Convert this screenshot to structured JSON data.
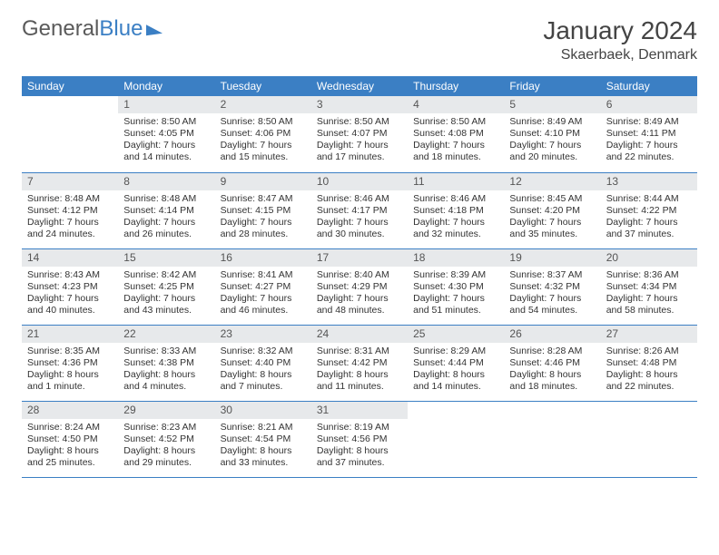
{
  "brand": {
    "part1": "General",
    "part2": "Blue"
  },
  "title": "January 2024",
  "location": "Skaerbaek, Denmark",
  "colors": {
    "accent": "#3b7fc4",
    "daynum_bg": "#e7e9eb",
    "text": "#333333",
    "background": "#ffffff"
  },
  "day_headers": [
    "Sunday",
    "Monday",
    "Tuesday",
    "Wednesday",
    "Thursday",
    "Friday",
    "Saturday"
  ],
  "weeks": [
    [
      {
        "n": "",
        "sr": "",
        "ss": "",
        "dl": ""
      },
      {
        "n": "1",
        "sr": "Sunrise: 8:50 AM",
        "ss": "Sunset: 4:05 PM",
        "dl": "Daylight: 7 hours and 14 minutes."
      },
      {
        "n": "2",
        "sr": "Sunrise: 8:50 AM",
        "ss": "Sunset: 4:06 PM",
        "dl": "Daylight: 7 hours and 15 minutes."
      },
      {
        "n": "3",
        "sr": "Sunrise: 8:50 AM",
        "ss": "Sunset: 4:07 PM",
        "dl": "Daylight: 7 hours and 17 minutes."
      },
      {
        "n": "4",
        "sr": "Sunrise: 8:50 AM",
        "ss": "Sunset: 4:08 PM",
        "dl": "Daylight: 7 hours and 18 minutes."
      },
      {
        "n": "5",
        "sr": "Sunrise: 8:49 AM",
        "ss": "Sunset: 4:10 PM",
        "dl": "Daylight: 7 hours and 20 minutes."
      },
      {
        "n": "6",
        "sr": "Sunrise: 8:49 AM",
        "ss": "Sunset: 4:11 PM",
        "dl": "Daylight: 7 hours and 22 minutes."
      }
    ],
    [
      {
        "n": "7",
        "sr": "Sunrise: 8:48 AM",
        "ss": "Sunset: 4:12 PM",
        "dl": "Daylight: 7 hours and 24 minutes."
      },
      {
        "n": "8",
        "sr": "Sunrise: 8:48 AM",
        "ss": "Sunset: 4:14 PM",
        "dl": "Daylight: 7 hours and 26 minutes."
      },
      {
        "n": "9",
        "sr": "Sunrise: 8:47 AM",
        "ss": "Sunset: 4:15 PM",
        "dl": "Daylight: 7 hours and 28 minutes."
      },
      {
        "n": "10",
        "sr": "Sunrise: 8:46 AM",
        "ss": "Sunset: 4:17 PM",
        "dl": "Daylight: 7 hours and 30 minutes."
      },
      {
        "n": "11",
        "sr": "Sunrise: 8:46 AM",
        "ss": "Sunset: 4:18 PM",
        "dl": "Daylight: 7 hours and 32 minutes."
      },
      {
        "n": "12",
        "sr": "Sunrise: 8:45 AM",
        "ss": "Sunset: 4:20 PM",
        "dl": "Daylight: 7 hours and 35 minutes."
      },
      {
        "n": "13",
        "sr": "Sunrise: 8:44 AM",
        "ss": "Sunset: 4:22 PM",
        "dl": "Daylight: 7 hours and 37 minutes."
      }
    ],
    [
      {
        "n": "14",
        "sr": "Sunrise: 8:43 AM",
        "ss": "Sunset: 4:23 PM",
        "dl": "Daylight: 7 hours and 40 minutes."
      },
      {
        "n": "15",
        "sr": "Sunrise: 8:42 AM",
        "ss": "Sunset: 4:25 PM",
        "dl": "Daylight: 7 hours and 43 minutes."
      },
      {
        "n": "16",
        "sr": "Sunrise: 8:41 AM",
        "ss": "Sunset: 4:27 PM",
        "dl": "Daylight: 7 hours and 46 minutes."
      },
      {
        "n": "17",
        "sr": "Sunrise: 8:40 AM",
        "ss": "Sunset: 4:29 PM",
        "dl": "Daylight: 7 hours and 48 minutes."
      },
      {
        "n": "18",
        "sr": "Sunrise: 8:39 AM",
        "ss": "Sunset: 4:30 PM",
        "dl": "Daylight: 7 hours and 51 minutes."
      },
      {
        "n": "19",
        "sr": "Sunrise: 8:37 AM",
        "ss": "Sunset: 4:32 PM",
        "dl": "Daylight: 7 hours and 54 minutes."
      },
      {
        "n": "20",
        "sr": "Sunrise: 8:36 AM",
        "ss": "Sunset: 4:34 PM",
        "dl": "Daylight: 7 hours and 58 minutes."
      }
    ],
    [
      {
        "n": "21",
        "sr": "Sunrise: 8:35 AM",
        "ss": "Sunset: 4:36 PM",
        "dl": "Daylight: 8 hours and 1 minute."
      },
      {
        "n": "22",
        "sr": "Sunrise: 8:33 AM",
        "ss": "Sunset: 4:38 PM",
        "dl": "Daylight: 8 hours and 4 minutes."
      },
      {
        "n": "23",
        "sr": "Sunrise: 8:32 AM",
        "ss": "Sunset: 4:40 PM",
        "dl": "Daylight: 8 hours and 7 minutes."
      },
      {
        "n": "24",
        "sr": "Sunrise: 8:31 AM",
        "ss": "Sunset: 4:42 PM",
        "dl": "Daylight: 8 hours and 11 minutes."
      },
      {
        "n": "25",
        "sr": "Sunrise: 8:29 AM",
        "ss": "Sunset: 4:44 PM",
        "dl": "Daylight: 8 hours and 14 minutes."
      },
      {
        "n": "26",
        "sr": "Sunrise: 8:28 AM",
        "ss": "Sunset: 4:46 PM",
        "dl": "Daylight: 8 hours and 18 minutes."
      },
      {
        "n": "27",
        "sr": "Sunrise: 8:26 AM",
        "ss": "Sunset: 4:48 PM",
        "dl": "Daylight: 8 hours and 22 minutes."
      }
    ],
    [
      {
        "n": "28",
        "sr": "Sunrise: 8:24 AM",
        "ss": "Sunset: 4:50 PM",
        "dl": "Daylight: 8 hours and 25 minutes."
      },
      {
        "n": "29",
        "sr": "Sunrise: 8:23 AM",
        "ss": "Sunset: 4:52 PM",
        "dl": "Daylight: 8 hours and 29 minutes."
      },
      {
        "n": "30",
        "sr": "Sunrise: 8:21 AM",
        "ss": "Sunset: 4:54 PM",
        "dl": "Daylight: 8 hours and 33 minutes."
      },
      {
        "n": "31",
        "sr": "Sunrise: 8:19 AM",
        "ss": "Sunset: 4:56 PM",
        "dl": "Daylight: 8 hours and 37 minutes."
      },
      {
        "n": "",
        "sr": "",
        "ss": "",
        "dl": ""
      },
      {
        "n": "",
        "sr": "",
        "ss": "",
        "dl": ""
      },
      {
        "n": "",
        "sr": "",
        "ss": "",
        "dl": ""
      }
    ]
  ]
}
